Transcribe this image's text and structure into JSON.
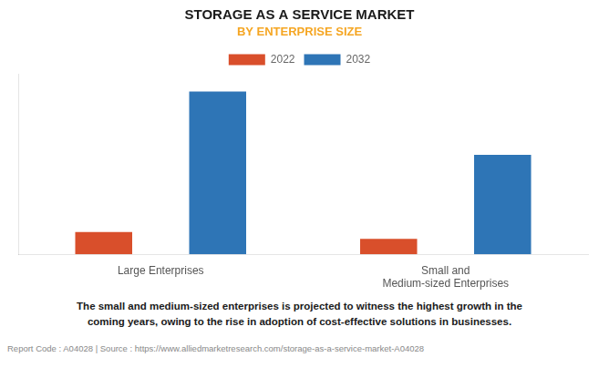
{
  "chart_data": {
    "type": "bar",
    "title": "STORAGE AS A SERVICE MARKET",
    "subtitle": "BY ENTERPRISE SIZE",
    "categories": [
      "Large Enterprises",
      "Small and\nMedium-sized Enterprises"
    ],
    "series": [
      {
        "name": "2022",
        "color": "#D94F2B",
        "values": [
          0.13,
          0.09
        ]
      },
      {
        "name": "2032",
        "color": "#2E75B6",
        "values": [
          0.95,
          0.58
        ]
      }
    ],
    "ylim": [
      0,
      1.05
    ],
    "grid": false,
    "tick_labels": "x",
    "legend": "top",
    "annotations": [
      "The small and medium-sized enterprises is projected to witness the highest growth in the\ncoming years, owing to the rise in adoption of cost-effective solutions in businesses.",
      "Report Code : A04028  |  Source : https://www.alliedmarketresearch.com/storage-as-a-service-market-A04028"
    ]
  }
}
